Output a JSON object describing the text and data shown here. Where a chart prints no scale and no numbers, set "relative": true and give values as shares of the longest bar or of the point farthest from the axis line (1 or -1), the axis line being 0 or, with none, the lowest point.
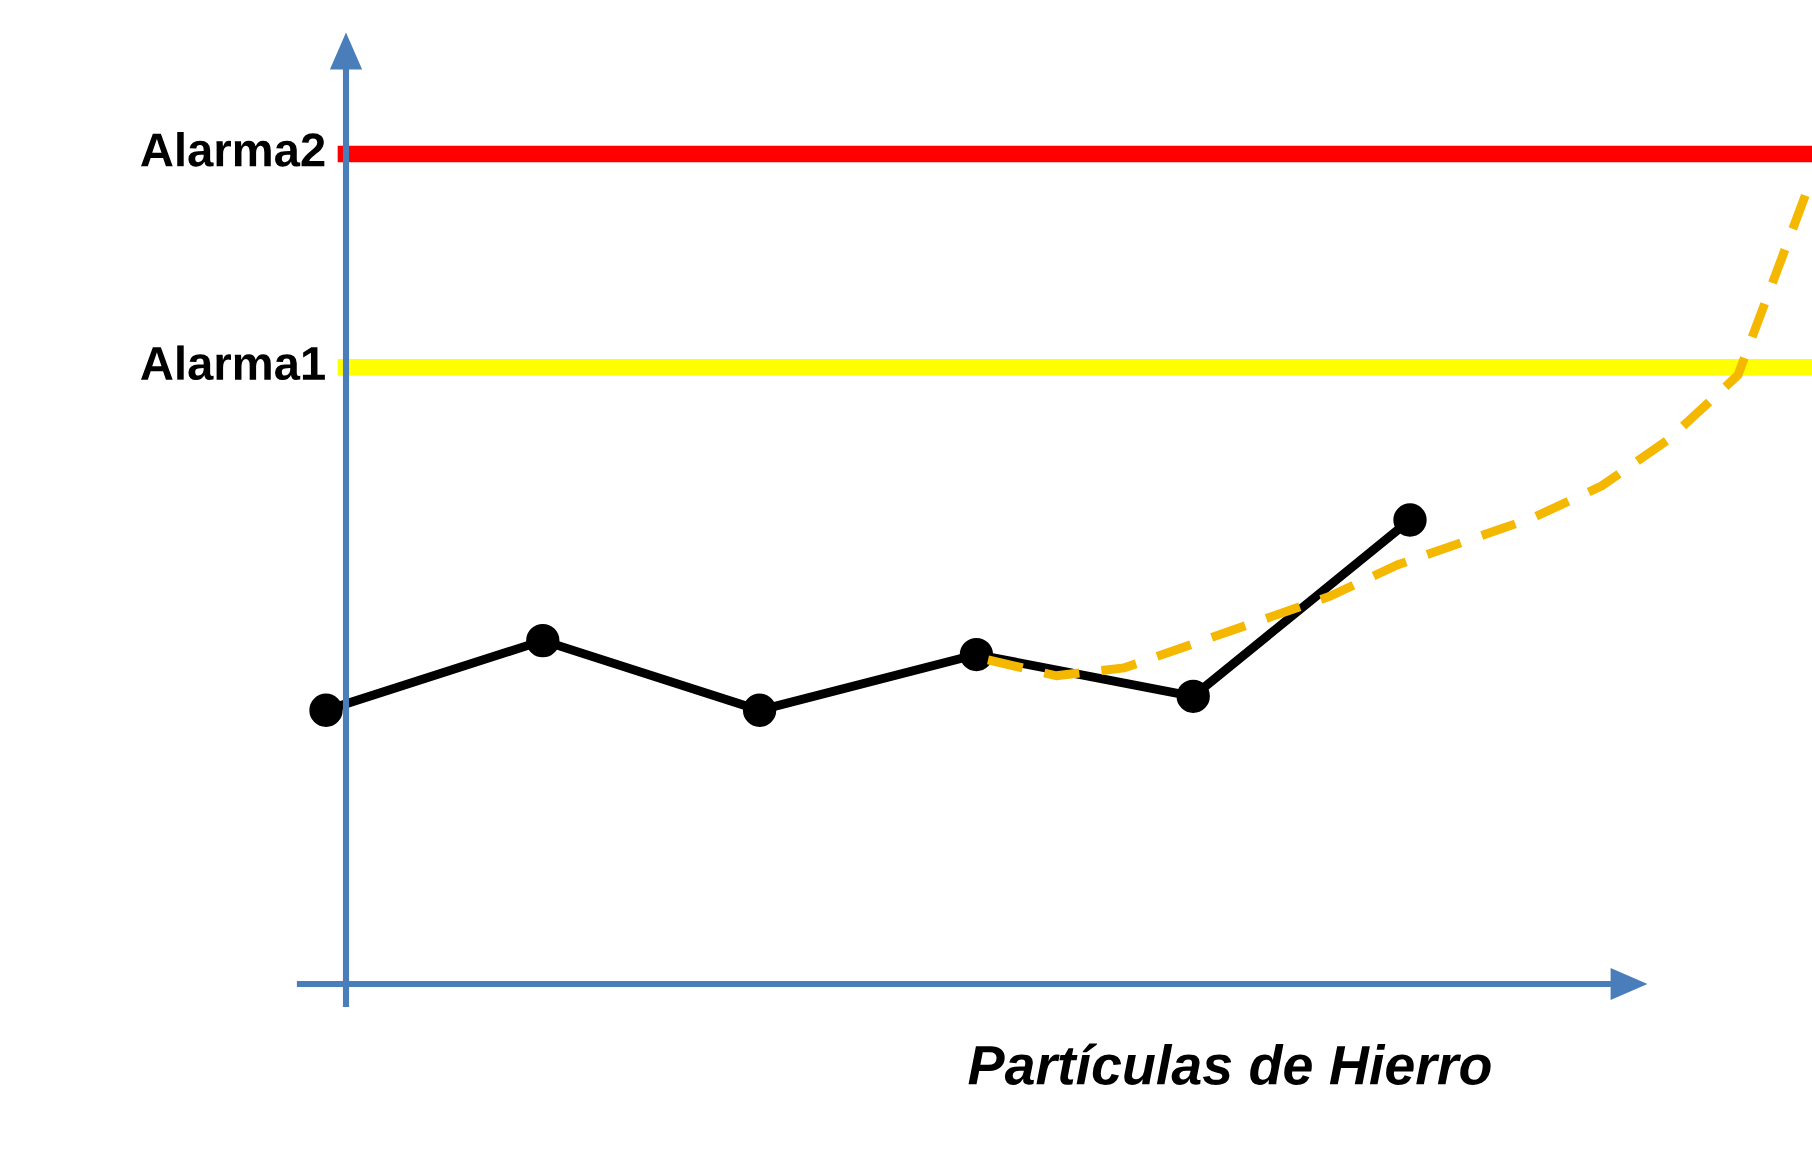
{
  "chart_data": [
    {
      "type": "line",
      "relative": true,
      "xlabel": "Partículas de Hierro",
      "categories": [
        null,
        null,
        null,
        null,
        null,
        null
      ],
      "series": [
        {
          "color": "#000000",
          "marker": "circle",
          "line_style": "solid",
          "values": [
            0.59,
            0.74,
            0.59,
            0.71,
            0.62,
            1.0
          ]
        }
      ]
    },
    {
      "type": "line",
      "relative": true,
      "categories": [
        null,
        null,
        null,
        null,
        null,
        null,
        null,
        null,
        null,
        null,
        null,
        null,
        null
      ],
      "series": [
        {
          "color": "#f5b800",
          "marker": "none",
          "line_style": "dashed",
          "values": [
            0.41,
            0.39,
            0.4,
            0.43,
            0.46,
            0.49,
            0.53,
            0.56,
            0.59,
            0.63,
            0.69,
            0.77,
            1.0
          ]
        }
      ],
      "ref_lines": [
        {
          "axis": "y",
          "value": 0.78,
          "label": "Alarma1",
          "color": "#ffff00"
        },
        {
          "axis": "y",
          "value": 1.05,
          "label": "Alarma2",
          "color": "#ff0000"
        }
      ]
    }
  ]
}
